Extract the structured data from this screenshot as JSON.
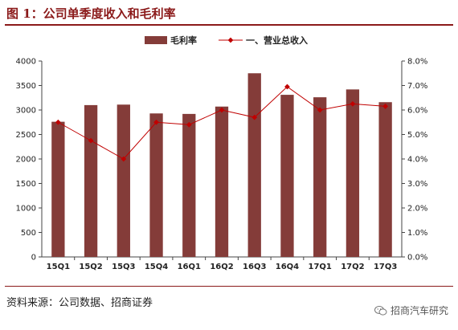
{
  "figure": {
    "title": "图 1：公司单季度收入和毛利率",
    "source": "资料来源：公司数据、招商证券",
    "watermark": "招商汽车研究",
    "watermark_icon": "wechat-icon"
  },
  "colors": {
    "bar": "#843c39",
    "line": "#c00000",
    "rule": "#8b1a1a"
  },
  "chart_data": {
    "type": "bar-line-combo",
    "title": "",
    "categories": [
      "15Q1",
      "15Q2",
      "15Q3",
      "15Q4",
      "16Q1",
      "16Q2",
      "16Q3",
      "16Q4",
      "17Q1",
      "17Q2",
      "17Q3"
    ],
    "series": [
      {
        "name": "毛利率",
        "type": "bar",
        "axis": "left",
        "values": [
          2760,
          3100,
          3110,
          2930,
          2920,
          3070,
          3750,
          3310,
          3260,
          3420,
          3160
        ]
      },
      {
        "name": "一、营业总收入",
        "type": "line",
        "axis": "right",
        "values": [
          5.5,
          4.75,
          4.0,
          5.5,
          5.4,
          6.0,
          5.7,
          6.95,
          6.0,
          6.25,
          6.15
        ]
      }
    ],
    "left_axis": {
      "ylim": [
        0,
        4000
      ],
      "ticks": [
        "0",
        "500",
        "1000",
        "1500",
        "2000",
        "2500",
        "3000",
        "3500",
        "4000"
      ]
    },
    "right_axis": {
      "ylim": [
        0,
        8
      ],
      "ticks": [
        "0.0%",
        "1.0%",
        "2.0%",
        "3.0%",
        "4.0%",
        "5.0%",
        "6.0%",
        "7.0%",
        "8.0%"
      ]
    },
    "legend": {
      "position": "top-center"
    },
    "grid": false
  }
}
